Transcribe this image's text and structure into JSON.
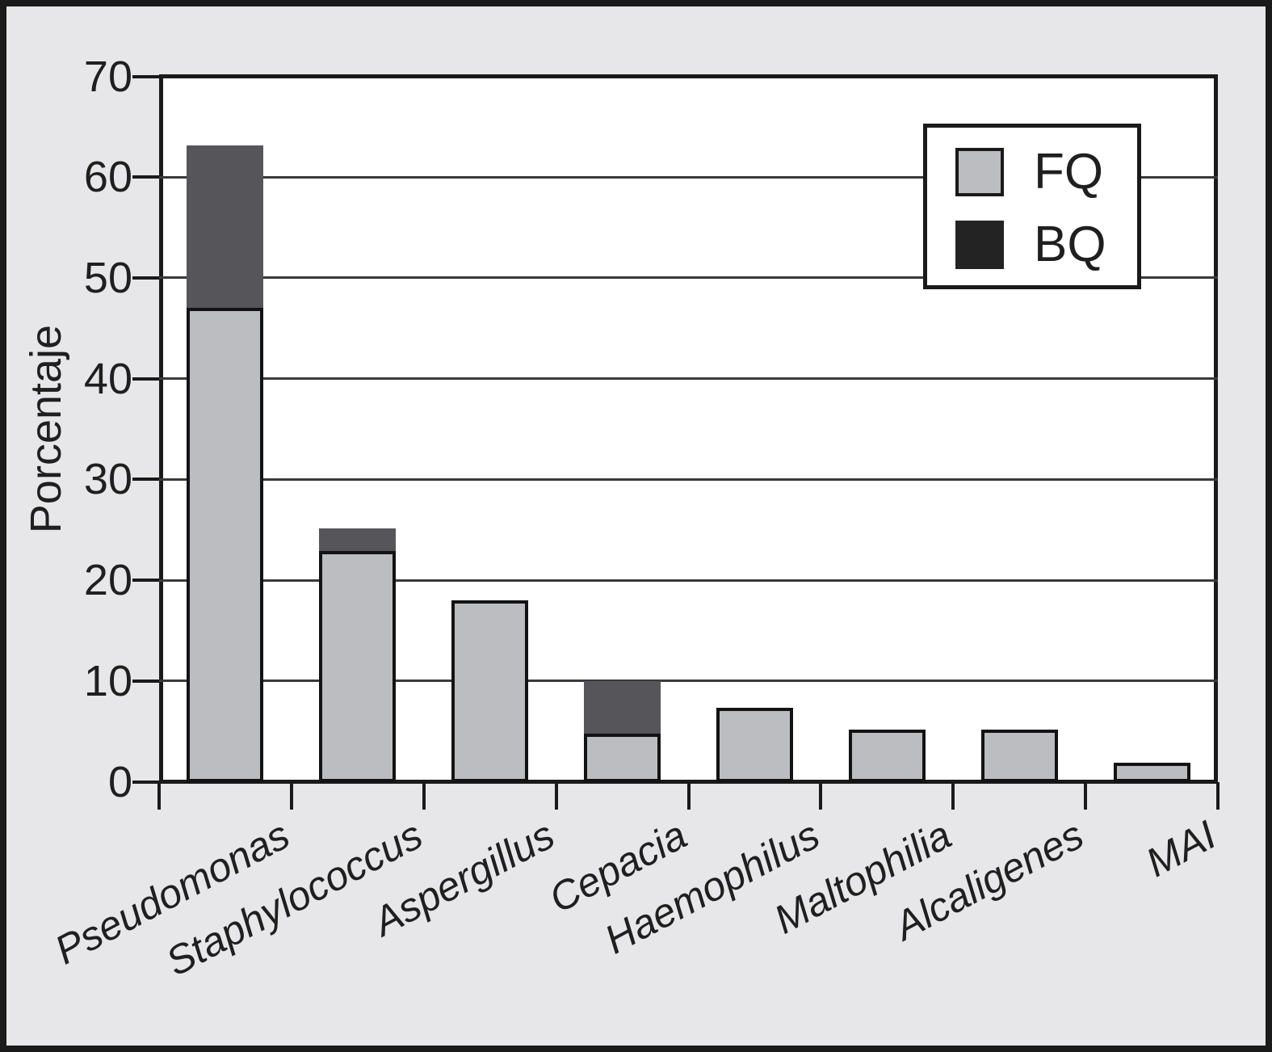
{
  "figure": {
    "page_background": "#e7e7e9",
    "plot_background": "#ffffff",
    "frame_color": "#1a1a1a",
    "text_color": "#1f1f1f"
  },
  "chart_data": {
    "type": "bar",
    "stacked": true,
    "title": "",
    "xlabel": "",
    "ylabel": "Porcentaje",
    "ylim": [
      0,
      70
    ],
    "yticks": [
      0,
      10,
      20,
      30,
      40,
      50,
      60,
      70
    ],
    "grid": true,
    "legend_position": "top-right",
    "categories": [
      "Pseudomonas",
      "Staphylococcus",
      "Aspergillus",
      "Cepacia",
      "Haemophilus",
      "Maltophilia",
      "Alcaligenes",
      "MAI"
    ],
    "series": [
      {
        "name": "FQ",
        "color": "#bcbdc1",
        "legend_color": "#bcbdc1",
        "values": [
          46.8,
          22.8,
          17.9,
          4.8,
          7.3,
          5.2,
          5.2,
          1.9
        ]
      },
      {
        "name": "BQ",
        "color": "#55555a",
        "legend_color": "#232323",
        "values": [
          16.0,
          2.2,
          0,
          5.2,
          0,
          0,
          0,
          0
        ]
      }
    ],
    "totals": [
      62.8,
      25.0,
      17.9,
      10.0,
      7.3,
      5.2,
      5.2,
      1.9
    ]
  }
}
